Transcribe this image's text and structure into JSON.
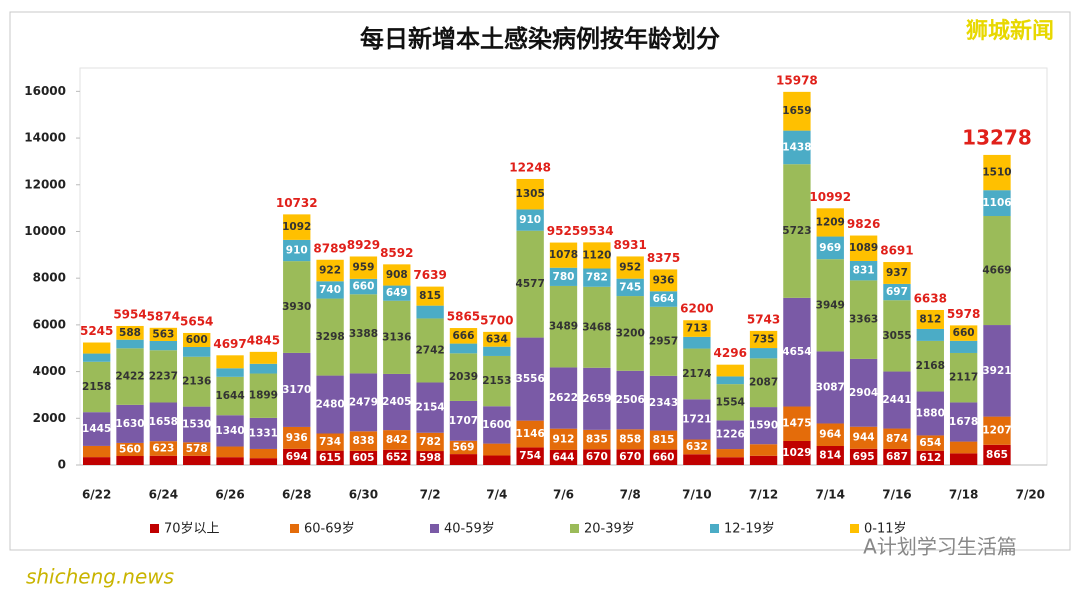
{
  "chart_data": {
    "type": "stacked_bar",
    "title": "每日新增本土感染病例按年龄划分",
    "source": "狮城新闻",
    "watermark": "A计划学习生活篇",
    "site": "shicheng.news",
    "categories": [
      "6/22",
      null,
      "6/24",
      null,
      "6/26",
      null,
      "6/28",
      null,
      "6/30",
      null,
      "7/2",
      null,
      "7/4",
      null,
      "7/6",
      null,
      "7/8",
      null,
      "7/10",
      null,
      "7/12",
      null,
      "7/14",
      null,
      "7/16",
      null,
      "7/18",
      null,
      "7/20"
    ],
    "series": [
      {
        "name": "70岁以上",
        "color": "#c00000",
        "values": [
          337,
          385,
          396,
          392,
          335,
          293,
          694,
          615,
          605,
          652,
          598,
          467,
          406,
          754,
          644,
          670,
          670,
          660,
          459,
          333,
          394,
          1029,
          814,
          695,
          687,
          612,
          498,
          865,
          null
        ]
      },
      {
        "name": "60-69岁",
        "color": "#e46c0a",
        "values": [
          480,
          560,
          623,
          578,
          456,
          394,
          936,
          734,
          838,
          842,
          782,
          569,
          510,
          1146,
          912,
          835,
          858,
          815,
          632,
          350,
          496,
          1475,
          964,
          944,
          874,
          654,
          504,
          1207,
          null
        ]
      },
      {
        "name": "40-59岁",
        "color": "#7a5aa6",
        "values": [
          1445,
          1630,
          1658,
          1530,
          1340,
          1331,
          3170,
          2480,
          2479,
          2405,
          2154,
          1707,
          1600,
          3556,
          2622,
          2659,
          2506,
          2343,
          1721,
          1226,
          1590,
          4654,
          3087,
          2904,
          2441,
          1880,
          1678,
          3921,
          null
        ]
      },
      {
        "name": "20-39岁",
        "color": "#9bbb59",
        "values": [
          2158,
          2422,
          2237,
          2136,
          1644,
          1899,
          3930,
          3298,
          3388,
          3136,
          2742,
          2039,
          2153,
          4577,
          3489,
          3468,
          3200,
          2957,
          2174,
          1554,
          2087,
          5723,
          3949,
          3363,
          3055,
          2168,
          2117,
          4669,
          null
        ]
      },
      {
        "name": "12-19岁",
        "color": "#4bacc6",
        "values": [
          352,
          369,
          397,
          418,
          366,
          416,
          910,
          740,
          660,
          649,
          548,
          417,
          397,
          910,
          780,
          782,
          745,
          664,
          501,
          330,
          441,
          1438,
          969,
          831,
          697,
          512,
          521,
          1106,
          null
        ]
      },
      {
        "name": "0-11岁",
        "color": "#ffc000",
        "values": [
          473,
          588,
          563,
          600,
          556,
          512,
          1092,
          922,
          959,
          908,
          815,
          666,
          634,
          1305,
          1078,
          1120,
          952,
          936,
          713,
          503,
          735,
          1659,
          1209,
          1089,
          937,
          812,
          660,
          1510,
          null
        ]
      }
    ],
    "totals": [
      5245,
      5954,
      5874,
      5654,
      4697,
      4845,
      10732,
      8789,
      8929,
      8592,
      7639,
      5865,
      5700,
      12248,
      9525,
      9534,
      8931,
      8375,
      6200,
      4296,
      5743,
      15978,
      10992,
      9826,
      8691,
      6638,
      5978,
      13278,
      null
    ],
    "ylim": [
      0,
      17000
    ],
    "yticks": [
      0,
      2000,
      4000,
      6000,
      8000,
      10000,
      12000,
      14000,
      16000
    ],
    "grid": false
  }
}
